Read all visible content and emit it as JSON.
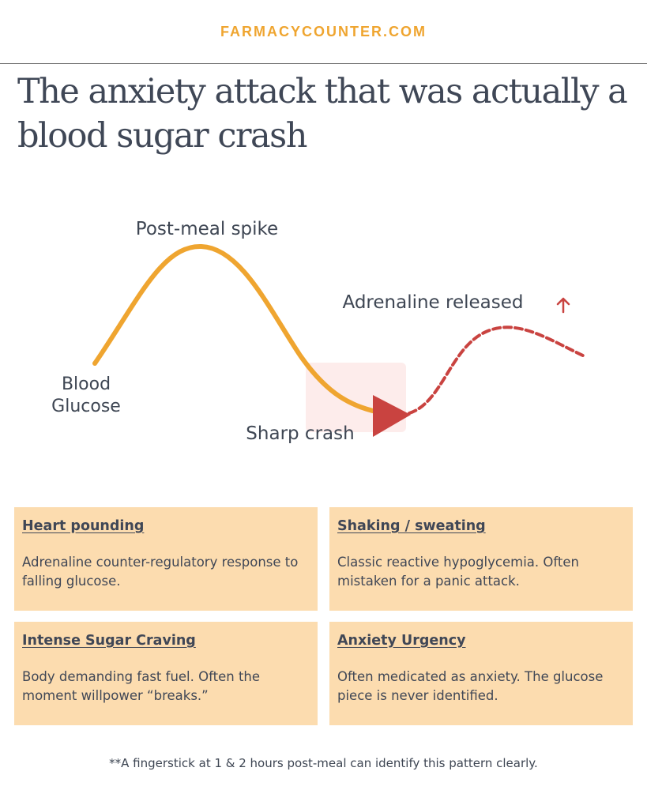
{
  "brand": "FARMACYCOUNTER.COM",
  "title": "The anxiety attack that was actually a blood sugar crash",
  "diagram": {
    "labels": {
      "blood_line1": "Blood",
      "blood_line2": "Glucose",
      "spike": "Post-meal spike",
      "crash": "Sharp crash",
      "adrenaline": "Adrenaline released"
    },
    "icons": [
      "up-arrow-icon",
      "triangle-marker-icon"
    ],
    "colors": {
      "glucose_curve": "#efa530",
      "adrenaline_curve": "#c94340",
      "crash_highlight": "#fdeceb"
    }
  },
  "cards": [
    {
      "title": "Heart pounding",
      "body": "Adrenaline counter-regulatory response to falling glucose."
    },
    {
      "title": "Shaking / sweating",
      "body": "Classic reactive hypoglycemia. Often mistaken for a panic attack."
    },
    {
      "title": "Intense Sugar Craving",
      "body": "Body demanding fast fuel. Often the moment willpower “breaks.”"
    },
    {
      "title": "Anxiety Urgency",
      "body": "Often medicated as anxiety. The glucose piece is never identified."
    }
  ],
  "card_color": "#fcdcaf",
  "footnote": "**A fingerstick at 1 & 2 hours post-meal can identify this pattern clearly."
}
